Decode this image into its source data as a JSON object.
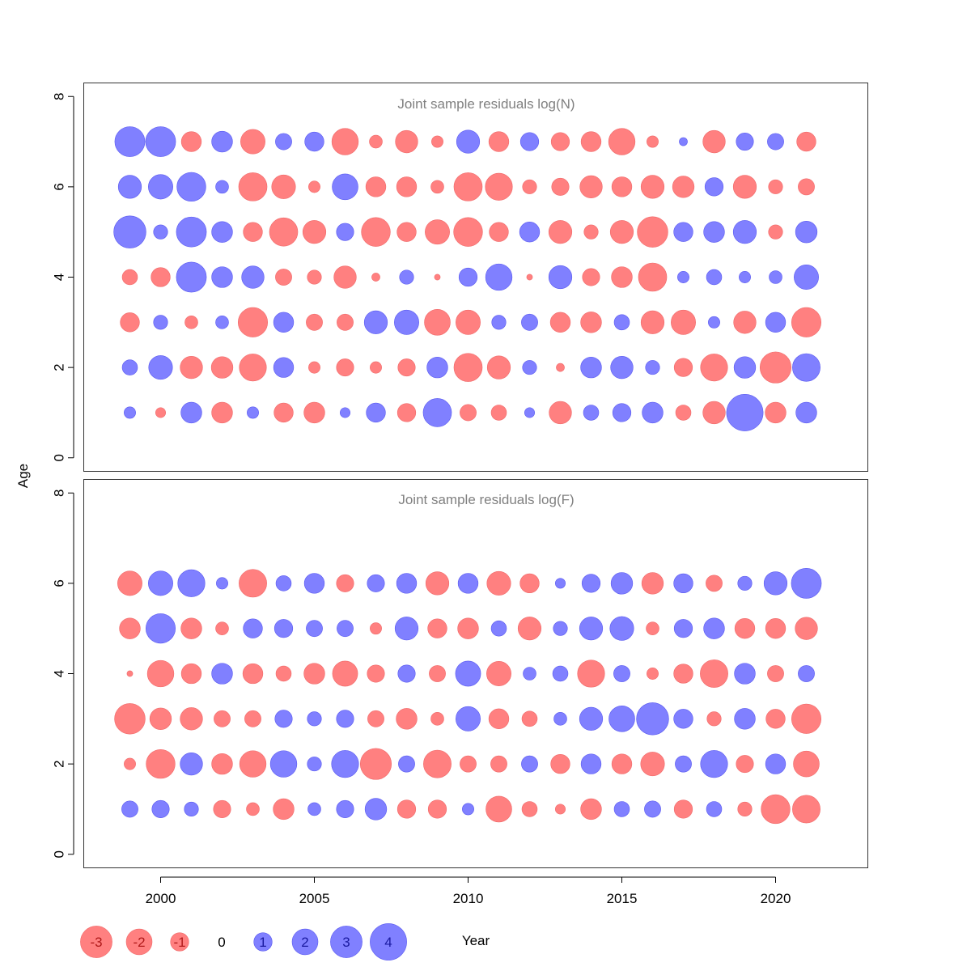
{
  "chart_data": {
    "type": "bubble",
    "xlabel": "Year",
    "ylabel": "Age",
    "xlim": [
      1997.5,
      2023
    ],
    "ylim": [
      -0.3,
      8.3
    ],
    "x_ticks": [
      2000,
      2005,
      2010,
      2015,
      2020
    ],
    "y_ticks": [
      0,
      2,
      4,
      6,
      8
    ],
    "years": [
      1999,
      2000,
      2001,
      2002,
      2003,
      2004,
      2005,
      2006,
      2007,
      2008,
      2009,
      2010,
      2011,
      2012,
      2013,
      2014,
      2015,
      2016,
      2017,
      2018,
      2019,
      2020,
      2021
    ],
    "positive_color": "#8080ff",
    "negative_color": "#ff8080",
    "panels": [
      {
        "title": "Joint sample residuals log(N)",
        "ages": [
          1,
          2,
          3,
          4,
          5,
          6,
          7
        ],
        "residuals": [
          [
            0.4,
            -0.3,
            1.3,
            -1.3,
            0.4,
            -1.1,
            -1.3,
            0.3,
            1.1,
            -1.0,
            2.4,
            -0.8,
            -0.7,
            0.3,
            -1.5,
            0.7,
            1.0,
            1.3,
            -0.7,
            -1.5,
            4.0,
            -1.3,
            1.3
          ],
          [
            0.7,
            1.7,
            -1.5,
            -1.4,
            -2.2,
            1.2,
            -0.4,
            -0.9,
            -0.4,
            -0.9,
            1.3,
            -2.4,
            -1.6,
            0.6,
            -0.2,
            1.3,
            1.5,
            0.6,
            -1.0,
            -2.2,
            1.4,
            -2.9,
            2.3
          ],
          [
            -1.1,
            0.6,
            -0.5,
            0.5,
            -2.6,
            1.2,
            -0.8,
            -0.8,
            1.6,
            1.8,
            -2.0,
            -1.8,
            0.6,
            0.8,
            -1.2,
            -1.3,
            0.7,
            -1.6,
            -1.8,
            0.4,
            -1.5,
            1.2,
            -2.6
          ],
          [
            -0.7,
            -1.1,
            2.7,
            1.3,
            1.5,
            -0.8,
            -0.6,
            -1.5,
            -0.2,
            0.6,
            -0.1,
            1.0,
            2.1,
            -0.1,
            1.6,
            -0.9,
            -1.3,
            -2.4,
            0.4,
            0.7,
            0.4,
            0.5,
            1.8
          ],
          [
            3.1,
            0.6,
            2.7,
            1.3,
            -1.1,
            -2.4,
            -1.6,
            0.9,
            -2.5,
            -1.1,
            -1.8,
            -2.5,
            -1.1,
            1.2,
            -1.6,
            -0.6,
            -1.6,
            -2.8,
            1.1,
            1.3,
            1.6,
            -0.6,
            1.4
          ],
          [
            1.6,
            1.8,
            2.5,
            0.5,
            -2.4,
            -1.7,
            -0.4,
            2.0,
            -1.2,
            -1.2,
            -0.5,
            -2.4,
            -2.2,
            -0.6,
            -0.9,
            -1.5,
            -1.2,
            -1.6,
            -1.4,
            1.0,
            -1.6,
            -0.6,
            -0.8
          ],
          [
            2.7,
            2.7,
            -1.2,
            1.3,
            -1.8,
            0.8,
            1.1,
            -2.1,
            -0.5,
            -1.5,
            -0.4,
            1.6,
            -1.2,
            1.0,
            -1.0,
            -1.2,
            -2.1,
            -0.4,
            0.2,
            -1.5,
            0.9,
            0.8,
            -1.1
          ]
        ]
      },
      {
        "title": "Joint sample residuals log(F)",
        "ages": [
          1,
          2,
          3,
          4,
          5,
          6
        ],
        "residuals": [
          [
            0.8,
            0.9,
            0.6,
            -0.9,
            -0.5,
            -1.3,
            0.5,
            0.9,
            1.4,
            -1.0,
            -1.0,
            0.4,
            -2.0,
            -0.7,
            -0.3,
            -1.3,
            0.7,
            0.8,
            -1.0,
            0.7,
            -0.6,
            -2.5,
            -2.3
          ],
          [
            -0.4,
            -2.5,
            1.5,
            -1.3,
            -2.1,
            2.1,
            0.6,
            2.2,
            -2.9,
            0.8,
            -2.3,
            -0.8,
            -0.8,
            0.8,
            -1.1,
            1.2,
            -1.2,
            -1.7,
            0.8,
            2.2,
            -0.9,
            1.2,
            -2.0
          ],
          [
            -2.8,
            -1.4,
            -1.5,
            -0.8,
            -0.8,
            0.9,
            0.6,
            0.9,
            -0.8,
            -1.3,
            -0.5,
            1.8,
            -1.2,
            -0.7,
            0.5,
            1.6,
            2.0,
            3.1,
            1.1,
            -0.6,
            1.3,
            -1.1,
            -2.6
          ],
          [
            -0.1,
            -2.1,
            -1.2,
            1.3,
            -1.2,
            -0.7,
            -1.3,
            -1.9,
            -0.9,
            0.9,
            -0.8,
            1.9,
            -1.8,
            0.5,
            0.7,
            -2.2,
            0.8,
            -0.4,
            -1.1,
            -2.3,
            1.3,
            -0.8,
            0.8
          ],
          [
            -1.3,
            2.6,
            -1.3,
            -0.5,
            1.1,
            1.0,
            0.8,
            0.8,
            -0.4,
            1.6,
            -1.1,
            -1.3,
            0.7,
            -1.6,
            0.6,
            1.6,
            1.7,
            -0.5,
            1.0,
            1.3,
            -1.2,
            -1.2,
            -1.5
          ],
          [
            -1.8,
            1.8,
            2.2,
            0.4,
            -2.3,
            0.7,
            1.2,
            -0.9,
            0.9,
            1.2,
            -1.6,
            1.2,
            -1.7,
            -1.1,
            0.3,
            1.0,
            1.4,
            -1.4,
            1.1,
            -0.8,
            0.6,
            1.6,
            2.7
          ]
        ]
      }
    ],
    "legend": {
      "placement": "bottom-left",
      "values": [
        -3,
        -2,
        -1,
        0,
        1,
        2,
        3,
        4
      ],
      "labels": [
        "-3",
        "-2",
        "-1",
        "0",
        "1",
        "2",
        "3",
        "4"
      ]
    }
  }
}
